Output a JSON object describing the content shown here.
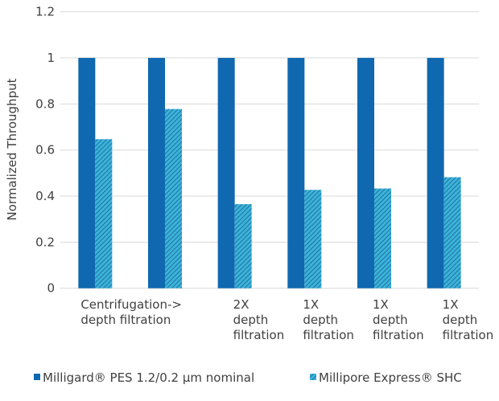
{
  "chart_data": {
    "type": "bar",
    "title": "",
    "xlabel": "",
    "ylabel": "Normalized Throughput",
    "ylim": [
      0,
      1.2
    ],
    "yticks": [
      "0",
      "0.2",
      "0.4",
      "0.6",
      "0.8",
      "1",
      "1.2"
    ],
    "grid": true,
    "legend_placement": "bottom",
    "categories": [
      [
        "Centrifugation->",
        "depth filtration"
      ],
      [
        "",
        ""
      ],
      [
        "2X",
        "depth",
        "filtration"
      ],
      [
        "1X",
        "depth",
        "filtration"
      ],
      [
        "1X",
        "depth",
        "filtration"
      ],
      [
        "1X",
        "depth",
        "filtration"
      ]
    ],
    "series": [
      {
        "name": "Milligard® PES 1.2/0.2  µm nominal",
        "color": "#0f68b0",
        "pattern": "solid",
        "values": [
          1,
          1,
          1,
          1,
          1,
          1
        ]
      },
      {
        "name": "Millipore Express® SHC",
        "color": "#3bb4d8",
        "pattern": "diagonal-hatch",
        "values": [
          0.647,
          0.778,
          0.365,
          0.427,
          0.433,
          0.482
        ]
      }
    ]
  }
}
